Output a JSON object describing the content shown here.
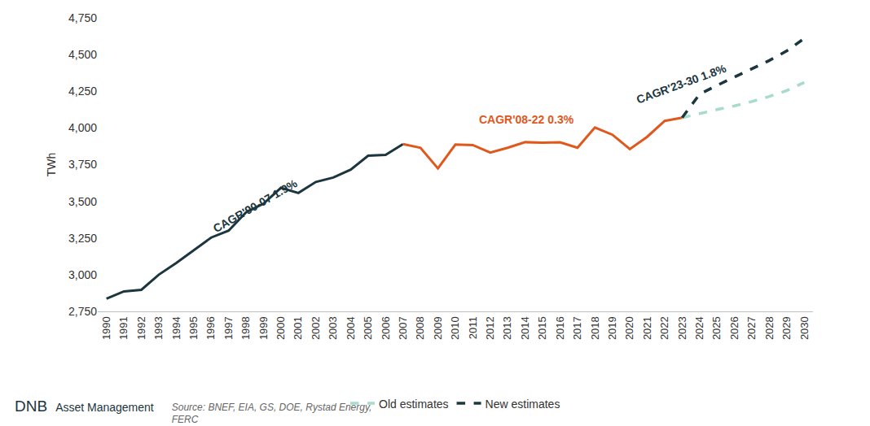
{
  "chart_data": {
    "type": "line",
    "x": [
      1990,
      1991,
      1992,
      1993,
      1994,
      1995,
      1996,
      1997,
      1998,
      1999,
      2000,
      2001,
      2002,
      2003,
      2004,
      2005,
      2006,
      2007,
      2008,
      2009,
      2010,
      2011,
      2012,
      2013,
      2014,
      2015,
      2016,
      2017,
      2018,
      2019,
      2020,
      2021,
      2022,
      2023,
      2024,
      2025,
      2026,
      2027,
      2028,
      2029,
      2030
    ],
    "series": [
      {
        "color": "#1c3640",
        "line_style": "solid",
        "values": [
          2837,
          2886,
          2897,
          3000,
          3080,
          3164,
          3253,
          3300,
          3425,
          3484,
          3592,
          3557,
          3632,
          3662,
          3716,
          3811,
          3817,
          3890,
          null,
          null,
          null,
          null,
          null,
          null,
          null,
          null,
          null,
          null,
          null,
          null,
          null,
          null,
          null,
          null,
          null,
          null,
          null,
          null,
          null,
          null,
          null
        ]
      },
      {
        "color": "#e0581c",
        "line_style": "solid",
        "values": [
          null,
          null,
          null,
          null,
          null,
          null,
          null,
          null,
          null,
          null,
          null,
          null,
          null,
          null,
          null,
          null,
          null,
          3890,
          3865,
          3724,
          3887,
          3883,
          3832,
          3865,
          3903,
          3900,
          3902,
          3865,
          4003,
          3954,
          3856,
          3940,
          4048,
          4070,
          null,
          null,
          null,
          null,
          null,
          null,
          null
        ]
      },
      {
        "name": "Old estimates",
        "color": "#a8dcc9",
        "line_style": "dashed",
        "values": [
          null,
          null,
          null,
          null,
          null,
          null,
          null,
          null,
          null,
          null,
          null,
          null,
          null,
          null,
          null,
          null,
          null,
          null,
          null,
          null,
          null,
          null,
          null,
          null,
          null,
          null,
          null,
          null,
          null,
          null,
          null,
          null,
          null,
          4070,
          4100,
          4125,
          4150,
          4180,
          4215,
          4255,
          4310
        ]
      },
      {
        "name": "New estimates",
        "color": "#1c3640",
        "line_style": "dashed",
        "values": [
          null,
          null,
          null,
          null,
          null,
          null,
          null,
          null,
          null,
          null,
          null,
          null,
          null,
          null,
          null,
          null,
          null,
          null,
          null,
          null,
          null,
          null,
          null,
          null,
          null,
          null,
          null,
          null,
          null,
          null,
          null,
          null,
          null,
          4070,
          4230,
          4290,
          4345,
          4400,
          4460,
          4525,
          4610
        ]
      }
    ],
    "xlim": [
      1989.5,
      2030.5
    ],
    "xticks": [
      1990,
      1991,
      1992,
      1993,
      1994,
      1995,
      1996,
      1997,
      1998,
      1999,
      2000,
      2001,
      2002,
      2003,
      2004,
      2005,
      2006,
      2007,
      2008,
      2009,
      2010,
      2011,
      2012,
      2013,
      2014,
      2015,
      2016,
      2017,
      2018,
      2019,
      2020,
      2021,
      2022,
      2023,
      2024,
      2025,
      2026,
      2027,
      2028,
      2029,
      2030
    ],
    "ylim": [
      2750,
      4750
    ],
    "yticks": [
      {
        "value": 2750,
        "label": "2,750"
      },
      {
        "value": 3000,
        "label": "3,000"
      },
      {
        "value": 3250,
        "label": "3,250"
      },
      {
        "value": 3500,
        "label": "3,500"
      },
      {
        "value": 3750,
        "label": "3,750"
      },
      {
        "value": 4000,
        "label": "4,000"
      },
      {
        "value": 4250,
        "label": "4,250"
      },
      {
        "value": 4500,
        "label": "4,500"
      },
      {
        "value": 4750,
        "label": "4,750"
      }
    ],
    "y_label": "TWh",
    "annotations": [
      {
        "text": "CAGR'90-07 1.9%",
        "color": "#1c3640"
      },
      {
        "text": "CAGR'08-22 0.3%",
        "color": "#e0581c"
      },
      {
        "text": "CAGR'23-30 1.8%",
        "color": "#1c3640"
      }
    ],
    "legend": "bottom",
    "grid": false
  },
  "footer": {
    "logo": "DNB",
    "company": "Asset Management",
    "source": "Source: BNEF, EIA, GS, DOE, Rystad Energy, FERC"
  }
}
